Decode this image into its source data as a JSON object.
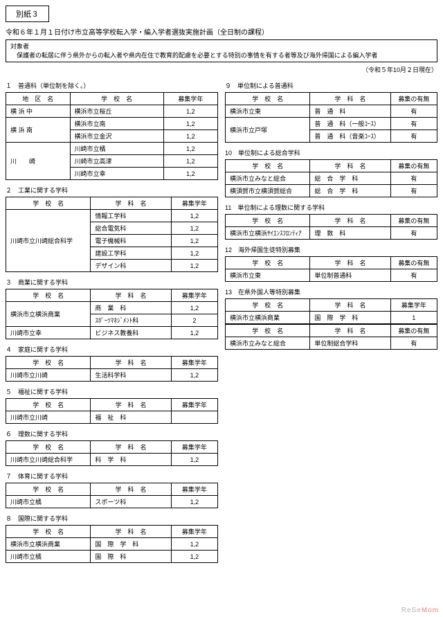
{
  "header_box": "別紙３",
  "title_line": "令和６年１月１日付け市立高等学校転入学・編入学者選抜実施計画（全日制の課程）",
  "target_box_title": "対象者",
  "target_box_text": "　保護者の転居に伴う県外からの転入者や県内在住で教育的配慮を必要とする特別の事情を有する者等及び海外帰国による編入学者",
  "date_note": "（令和５年10月２日現在）",
  "col_district": "地　区　名",
  "col_school": "学　校　名",
  "col_dept": "学　科　名",
  "col_grades": "募集学年",
  "col_avail": "募集の有無",
  "left": [
    {
      "title": "１　普通科（単位制を除く。）",
      "cols": [
        "district",
        "school",
        "grades"
      ],
      "rows": [
        [
          "横 浜 中",
          "横浜市立桜丘",
          "1,2"
        ],
        [
          "横 浜 南",
          "横浜市立南",
          "1,2"
        ],
        [
          "",
          "横浜市立金沢",
          "1,2"
        ],
        [
          "川　　崎",
          "川崎市立橘",
          "1,2"
        ],
        [
          "",
          "川崎市立高津",
          "1,2"
        ],
        [
          "",
          "川崎市立幸",
          "1,2"
        ]
      ],
      "spans": [
        [
          0,
          1
        ],
        [
          1,
          2
        ],
        [
          3,
          3
        ]
      ]
    },
    {
      "title": "２　工業に関する学科",
      "cols": [
        "school",
        "dept",
        "grades"
      ],
      "rows": [
        [
          "川崎市立川崎総合科学",
          "情報工学科",
          "1,2"
        ],
        [
          "",
          "総合電気科",
          "1,2"
        ],
        [
          "",
          "電子機械科",
          "1,2"
        ],
        [
          "",
          "建設工学科",
          "1,2"
        ],
        [
          "",
          "デザイン科",
          "1,2"
        ]
      ],
      "spans": [
        [
          0,
          5
        ]
      ]
    },
    {
      "title": "３　商業に関する学科",
      "cols": [
        "school",
        "dept",
        "grades"
      ],
      "rows": [
        [
          "横浜市立横浜商業",
          "商　業　科",
          "1,2"
        ],
        [
          "",
          "ｽﾎﾟｰﾂﾏﾈｼﾞﾒﾝﾄ科",
          "2"
        ],
        [
          "川崎市立幸",
          "ビジネス教養科",
          "1,2"
        ]
      ],
      "spans": [
        [
          0,
          2
        ],
        [
          2,
          1
        ]
      ]
    },
    {
      "title": "４　家庭に関する学科",
      "cols": [
        "school",
        "dept",
        "grades"
      ],
      "rows": [
        [
          "川崎市立川崎",
          "生活科学科",
          "1,2"
        ]
      ]
    },
    {
      "title": "５　福祉に関する学科",
      "cols": [
        "school",
        "dept",
        "grades"
      ],
      "rows": [
        [
          "川崎市立川崎",
          "福　祉　科",
          ""
        ]
      ]
    },
    {
      "title": "６　理数に関する学科",
      "cols": [
        "school",
        "dept",
        "grades"
      ],
      "rows": [
        [
          "川崎市立川崎総合科学",
          "科　学　科",
          "1,2"
        ]
      ]
    },
    {
      "title": "７　体育に関する学科",
      "cols": [
        "school",
        "dept",
        "grades"
      ],
      "rows": [
        [
          "川崎市立橘",
          "スポーツ科",
          "1,2"
        ]
      ]
    },
    {
      "title": "８　国際に関する学科",
      "cols": [
        "school",
        "dept",
        "grades"
      ],
      "rows": [
        [
          "横浜市立横浜商業",
          "国　際　学　科",
          "1,2"
        ],
        [
          "川崎市立橘",
          "国　際　科",
          "1,2"
        ]
      ]
    }
  ],
  "right": [
    {
      "title": "９　単位制による普通科",
      "cols": [
        "school",
        "dept",
        "avail"
      ],
      "rows": [
        [
          "横浜市立東",
          "普　通　科",
          "有"
        ],
        [
          "横浜市立戸塚",
          "普　通　科（一般ｺｰｽ）",
          "有"
        ],
        [
          "",
          "普　通　科（音楽ｺｰｽ）",
          "有"
        ]
      ],
      "spans": [
        [
          0,
          1
        ],
        [
          1,
          2
        ]
      ]
    },
    {
      "title": "10　単位制による総合学科",
      "cols": [
        "school",
        "dept",
        "avail"
      ],
      "rows": [
        [
          "横浜市立みなと総合",
          "総　合　学　科",
          "有"
        ],
        [
          "横須賀市立横須賀総合",
          "総　合　学　科",
          "有"
        ]
      ]
    },
    {
      "title": "11　単位制による理数に関する学科",
      "cols": [
        "school",
        "dept",
        "avail"
      ],
      "rows": [
        [
          "横浜市立横浜ｻｲｴﾝｽﾌﾛﾝﾃｨｱ",
          "理　数　科",
          "有"
        ]
      ]
    },
    {
      "title": "12　海外帰国生徒特別募集",
      "cols": [
        "school",
        "dept",
        "avail"
      ],
      "rows": [
        [
          "横浜市立東",
          "単位制普通科",
          "有"
        ]
      ]
    },
    {
      "title": "13　在県外国人等特別募集",
      "cols": [
        "school",
        "dept",
        "grades"
      ],
      "rows": [
        [
          "横浜市立横浜商業",
          "国　際　学　科",
          "1"
        ]
      ]
    },
    {
      "title": "",
      "cols": [
        "school",
        "dept",
        "avail"
      ],
      "rows": [
        [
          "横浜市立みなと総合",
          "単位制総合学科",
          "有"
        ]
      ]
    }
  ],
  "watermark_rese": "ReSe",
  "watermark_mom": "Mom"
}
